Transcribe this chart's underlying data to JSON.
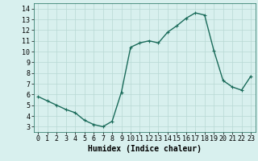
{
  "x": [
    0,
    1,
    2,
    3,
    4,
    5,
    6,
    7,
    8,
    9,
    10,
    11,
    12,
    13,
    14,
    15,
    16,
    17,
    18,
    19,
    20,
    21,
    22,
    23
  ],
  "y": [
    5.8,
    5.4,
    5.0,
    4.6,
    4.3,
    3.6,
    3.2,
    3.0,
    3.5,
    6.2,
    10.4,
    10.8,
    11.0,
    10.8,
    11.8,
    12.4,
    13.1,
    13.6,
    13.4,
    10.1,
    7.3,
    6.7,
    6.4,
    7.7
  ],
  "line_color": "#1a6b5a",
  "marker": "+",
  "marker_size": 3,
  "bg_color": "#d8f0ee",
  "grid_color": "#b8d8d4",
  "xlabel": "Humidex (Indice chaleur)",
  "xlim": [
    -0.5,
    23.5
  ],
  "ylim": [
    2.5,
    14.5
  ],
  "yticks": [
    3,
    4,
    5,
    6,
    7,
    8,
    9,
    10,
    11,
    12,
    13,
    14
  ],
  "xticks": [
    0,
    1,
    2,
    3,
    4,
    5,
    6,
    7,
    8,
    9,
    10,
    11,
    12,
    13,
    14,
    15,
    16,
    17,
    18,
    19,
    20,
    21,
    22,
    23
  ],
  "tick_fontsize": 6,
  "label_fontsize": 7,
  "line_width": 1.0
}
